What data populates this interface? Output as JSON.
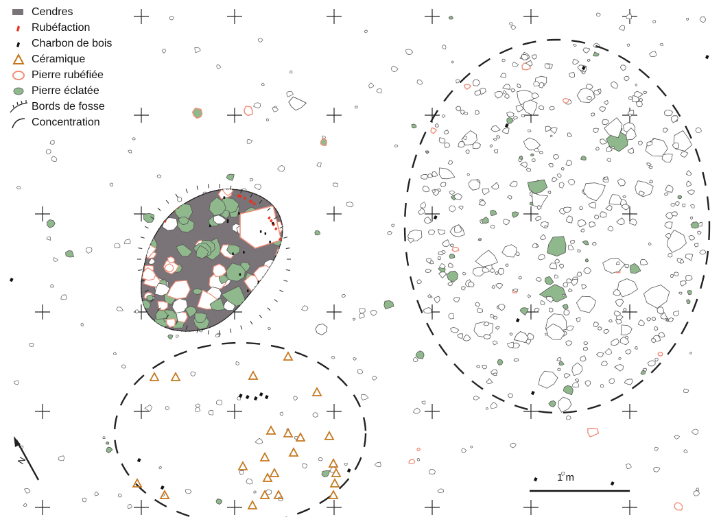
{
  "legend": {
    "items": [
      {
        "key": "cendres",
        "label": "Cendres",
        "icon": "ash-swatch-icon",
        "color": "#7a7378"
      },
      {
        "key": "rubefaction",
        "label": "Rubéfaction",
        "icon": "rubefaction-mark-icon",
        "color": "#e8331e"
      },
      {
        "key": "charbon",
        "label": "Charbon de bois",
        "icon": "charcoal-mark-icon",
        "color": "#111111"
      },
      {
        "key": "ceramique",
        "label": "Céramique",
        "icon": "triangle-icon",
        "color": "#c5761c"
      },
      {
        "key": "pierre_rubefiee",
        "label": "Pierre rubéfiée",
        "icon": "red-outline-stone-icon",
        "color": "#f08d78"
      },
      {
        "key": "pierre_eclatee",
        "label": "Pierre éclatée",
        "icon": "green-stone-icon",
        "color": "#8fb98c"
      },
      {
        "key": "bords_fosse",
        "label": "Bords de fosse",
        "icon": "pit-edge-icon",
        "color": "#222222"
      },
      {
        "key": "concentration",
        "label": "Concentration",
        "icon": "dashed-arc-icon",
        "color": "#222222"
      }
    ]
  },
  "scale": {
    "label": "1 m"
  },
  "north": {
    "icon": "north-arrow-icon"
  },
  "colors": {
    "ash": "#7a7378",
    "rubefaction": "#e8331e",
    "charcoal": "#111111",
    "ceramic": "#c5761c",
    "red_stone": "#f08d78",
    "green_stone": "#8fb98c",
    "stone_outline": "#555555",
    "line": "#222222"
  }
}
